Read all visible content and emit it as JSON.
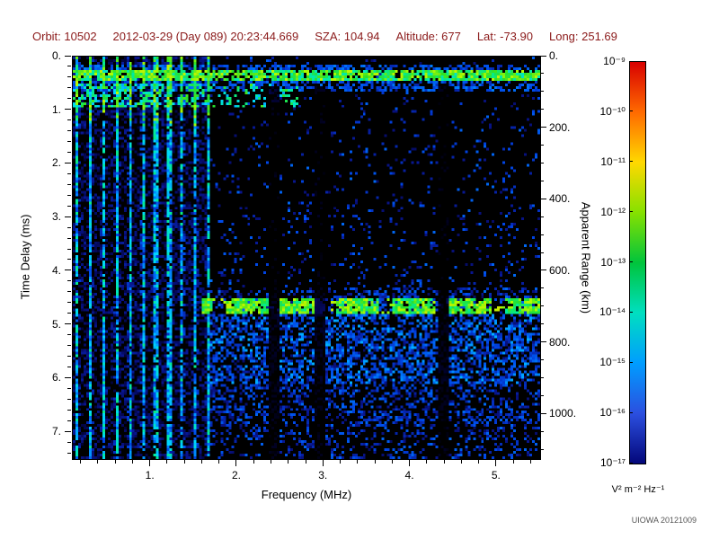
{
  "header": {
    "color": "#8b1a1a",
    "items": [
      {
        "label": "Orbit:",
        "value": "10502"
      },
      {
        "label": "",
        "value": "2012-03-29 (Day 089) 20:23:44.669"
      },
      {
        "label": "SZA:",
        "value": "104.94"
      },
      {
        "label": "Altitude:",
        "value": "677"
      },
      {
        "label": "Lat:",
        "value": "-73.90"
      },
      {
        "label": "Long:",
        "value": "251.69"
      }
    ]
  },
  "credit": "UIOWA 20121009",
  "chart_data": {
    "type": "heatmap",
    "subtype": "radar-sounder-ionogram-spectrogram",
    "title": "",
    "xlabel": "Frequency (MHz)",
    "ylabel": "Time Delay (ms)",
    "ylabel_right": "Apparent Range (km)",
    "x_range_mhz": [
      0.1,
      5.5
    ],
    "y_range_ms": [
      0.0,
      7.5
    ],
    "y_axis_inverted": true,
    "grid": false,
    "background": "#000000",
    "x_major_ticks": [
      {
        "value": 1,
        "label": "1."
      },
      {
        "value": 2,
        "label": "2."
      },
      {
        "value": 3,
        "label": "3."
      },
      {
        "value": 4,
        "label": "4."
      },
      {
        "value": 5,
        "label": "5."
      }
    ],
    "x_minor_step_mhz": 0.2,
    "y_major_ticks_left": [
      {
        "value": 0,
        "label": "0."
      },
      {
        "value": 1,
        "label": "1."
      },
      {
        "value": 2,
        "label": "2."
      },
      {
        "value": 3,
        "label": "3."
      },
      {
        "value": 4,
        "label": "4."
      },
      {
        "value": 5,
        "label": "5."
      },
      {
        "value": 6,
        "label": "6."
      },
      {
        "value": 7,
        "label": "7."
      }
    ],
    "y_minor_step_ms": 0.2,
    "y_major_ticks_right_km": [
      {
        "value": 0,
        "label": "0."
      },
      {
        "value": 200,
        "label": "200."
      },
      {
        "value": 400,
        "label": "400."
      },
      {
        "value": 600,
        "label": "600."
      },
      {
        "value": 800,
        "label": "800."
      },
      {
        "value": 1000,
        "label": "1000."
      }
    ],
    "y_minor_step_km": 50,
    "km_per_ms": 150,
    "colorbar": {
      "scale": "log",
      "min": "1e-17",
      "max": "1e-9",
      "unit_label": "V² m⁻² Hz⁻¹",
      "tick_labels": [
        "10⁻⁹",
        "10⁻¹⁰",
        "10⁻¹¹",
        "10⁻¹²",
        "10⁻¹³",
        "10⁻¹⁴",
        "10⁻¹⁵",
        "10⁻¹⁶",
        "10⁻¹⁷"
      ],
      "colors_top_to_bottom": [
        "#d80000",
        "#ff6a00",
        "#ffd800",
        "#86e100",
        "#00c43c",
        "#00dfc0",
        "#009dff",
        "#2b4fe0",
        "#03077a"
      ]
    },
    "features": {
      "direct_signal_echo": {
        "delay_ms": 0.35,
        "freq_span_mhz": [
          0.1,
          5.5
        ],
        "intensity": "strong"
      },
      "surface_echo": {
        "delay_ms": 4.65,
        "freq_span_mhz": [
          1.65,
          5.5
        ],
        "apparent_range_km": 698,
        "intensity": "strong"
      },
      "plasma_oscillation_harmonics": {
        "spacing_mhz": 0.152,
        "freq_span_mhz": [
          0.1,
          1.68
        ],
        "delay_span_ms": [
          0.0,
          7.5
        ]
      },
      "diffuse_noise_floor": {
        "delay_span_ms": [
          4.3,
          7.5
        ],
        "freq_span_mhz": [
          1.65,
          5.5
        ]
      },
      "attenuation_gaps_mhz": [
        2.42,
        2.95,
        4.38
      ]
    }
  }
}
